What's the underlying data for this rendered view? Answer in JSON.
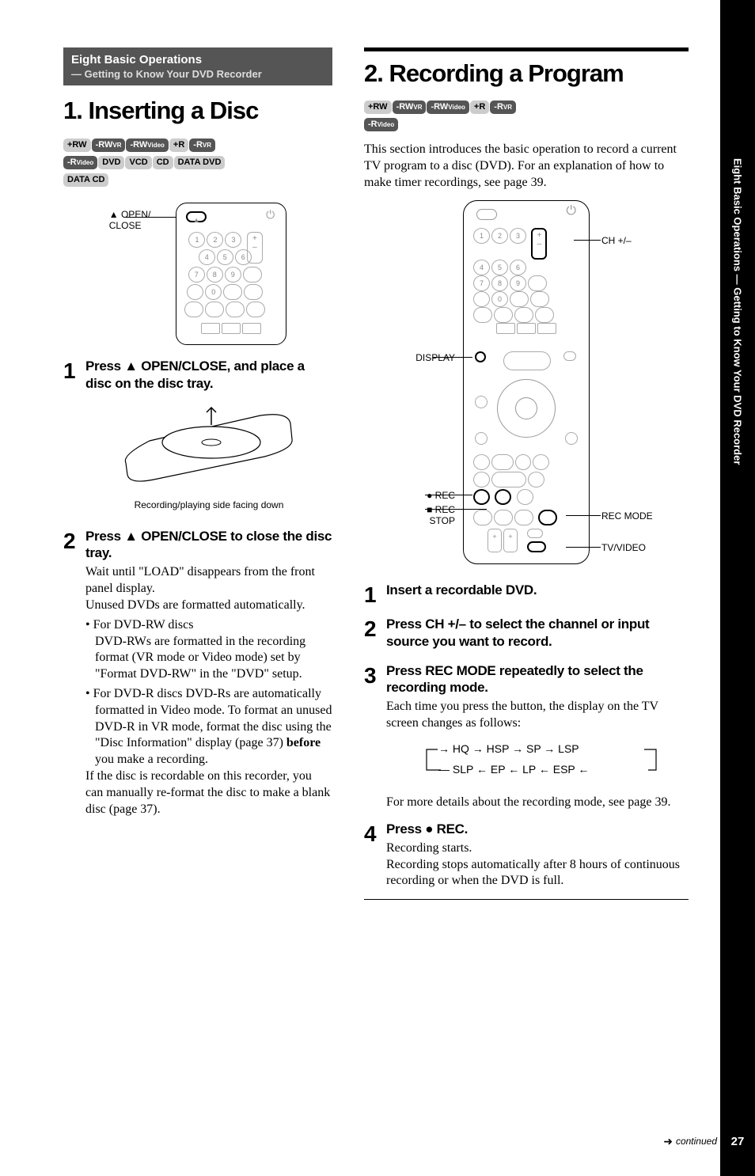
{
  "side_text": "Eight Basic Operations — Getting to Know Your DVD Recorder",
  "section_hdr": {
    "main": "Eight Basic Operations",
    "sub": "— Getting to Know Your DVD Recorder"
  },
  "left": {
    "title": "1. Inserting a Disc",
    "badges_row1": [
      "+RW",
      "-RWVR",
      "-RWVideo",
      "+R",
      "-RVR"
    ],
    "badges_row2": [
      "-RVideo",
      "DVD",
      "VCD",
      "CD",
      "DATA DVD"
    ],
    "badges_row3": [
      "DATA CD"
    ],
    "open_label": "▲ OPEN/\nCLOSE",
    "step1_head": "Press ▲ OPEN/CLOSE, and place a disc on the disc tray.",
    "caption": "Recording/playing side facing down",
    "step2_head": "Press ▲ OPEN/CLOSE to close the disc tray.",
    "step2_p1": "Wait until \"LOAD\" disappears from the front panel display.",
    "step2_p2": "Unused DVDs are formatted automatically.",
    "step2_li1": "For DVD-RW discs\nDVD-RWs are formatted in the recording format (VR mode or Video mode) set by \"Format DVD-RW\" in the \"DVD\" setup.",
    "step2_li2_a": "For DVD-R discs\nDVD-Rs are automatically formatted in Video mode. To format an unused DVD-R in VR mode, format the disc using the \"Disc Information\" display (page 37) ",
    "step2_li2_bold": "before",
    "step2_li2_b": " you make a recording.",
    "step2_p3": "If the disc is recordable on this recorder, you can manually re-format the disc to make a blank disc (page 37)."
  },
  "right": {
    "title": "2. Recording a Program",
    "badges_row1": [
      "+RW",
      "-RWVR",
      "-RWVideo",
      "+R",
      "-RVR"
    ],
    "badges_row2": [
      "-RVideo"
    ],
    "intro": "This section introduces the basic operation to record a current TV program to a disc (DVD). For an explanation of how to make timer recordings, see page 39.",
    "labels": {
      "ch": "CH +/–",
      "display": "DISPLAY",
      "rec": "● REC",
      "stop": "■ REC STOP",
      "recmode": "REC MODE",
      "tvvideo": "TV/VIDEO"
    },
    "step1_head": "Insert a recordable DVD.",
    "step2_head": "Press CH +/– to select the channel or input source you want to record.",
    "step3_head": "Press REC MODE repeatedly to select the recording mode.",
    "step3_body": "Each time you press the button, the display on the TV screen changes as follows:",
    "mode_top": "HQ → HSP → SP → LSP",
    "mode_bot": "SLP ← EP ← LP ← ESP",
    "step3_body2": "For more details about the recording mode, see page 39.",
    "step4_head": "Press ● REC.",
    "step4_p1": "Recording starts.",
    "step4_p2": "Recording stops automatically after 8 hours of continuous recording or when the DVD is full."
  },
  "footer": {
    "cont": "continued",
    "page": "27"
  },
  "badge_styles": {
    "+RW": "light",
    "-RWVR": "dark",
    "-RWVideo": "dark",
    "+R": "light",
    "-RVR": "dark",
    "-RVideo": "dark",
    "DVD": "light",
    "VCD": "light",
    "CD": "light",
    "DATA DVD": "light",
    "DATA CD": "light"
  }
}
